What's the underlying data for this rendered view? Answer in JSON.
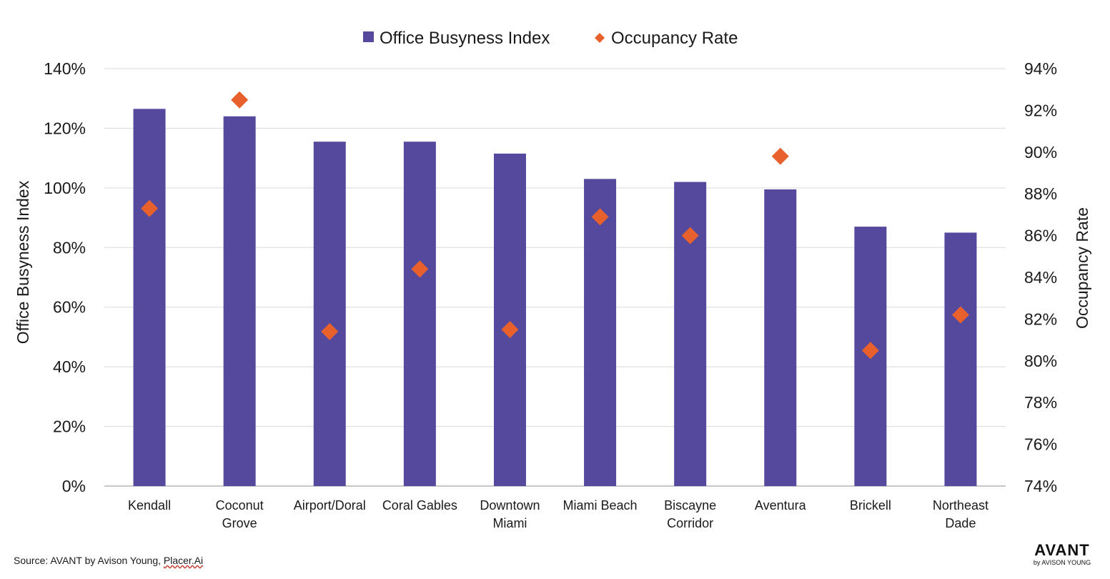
{
  "chart_data": {
    "type": "bar",
    "categories": [
      "Kendall",
      "Coconut Grove",
      "Airport/Doral",
      "Coral Gables",
      "Downtown Miami",
      "Miami Beach",
      "Biscayne Corridor",
      "Aventura",
      "Brickell",
      "Northeast Dade"
    ],
    "category_lines": [
      [
        "Kendall"
      ],
      [
        "Coconut",
        "Grove"
      ],
      [
        "Airport/Doral"
      ],
      [
        "Coral Gables"
      ],
      [
        "Downtown",
        "Miami"
      ],
      [
        "Miami Beach"
      ],
      [
        "Biscayne",
        "Corridor"
      ],
      [
        "Aventura"
      ],
      [
        "Brickell"
      ],
      [
        "Northeast",
        "Dade"
      ]
    ],
    "series": [
      {
        "name": "Office Busyness Index",
        "type": "bar",
        "axis": "left",
        "color": "#55499e",
        "values": [
          126.5,
          124,
          115.5,
          115.5,
          111.5,
          103,
          102,
          99.5,
          87,
          85
        ]
      },
      {
        "name": "Occupancy Rate",
        "type": "scatter",
        "marker": "diamond",
        "axis": "right",
        "color": "#e8612c",
        "values": [
          87.3,
          92.5,
          81.4,
          84.4,
          81.5,
          86.9,
          86.0,
          89.8,
          80.5,
          82.2
        ]
      }
    ],
    "ylabel": "Office Busyness Index",
    "y2label": "Occupancy Rate",
    "ylim": [
      0,
      140
    ],
    "y2lim": [
      74,
      94
    ],
    "yticks": [
      "0%",
      "20%",
      "40%",
      "60%",
      "80%",
      "100%",
      "120%",
      "140%"
    ],
    "y2ticks": [
      "74%",
      "76%",
      "78%",
      "80%",
      "82%",
      "84%",
      "86%",
      "88%",
      "90%",
      "92%",
      "94%"
    ],
    "grid": true,
    "legend_position": "top-center"
  },
  "footer": {
    "source_prefix": "Source: AVANT by Avison Young, ",
    "source_link": "Placer.Ai"
  },
  "logo": {
    "main": "AVANT",
    "sub": "by AVISON YOUNG"
  }
}
